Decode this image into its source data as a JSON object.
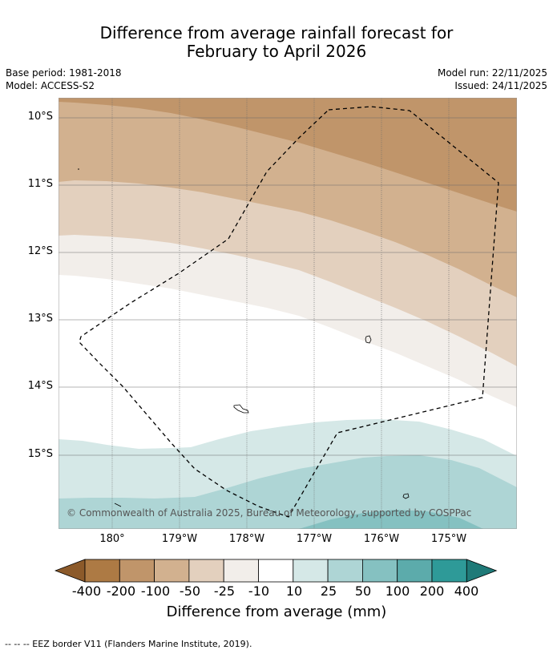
{
  "title_line1": "Difference from average rainfall forecast for",
  "title_line2": "February to April 2026",
  "base_period": "Base period: 1981-2018",
  "model": "Model: ACCESS-S2",
  "model_run": "Model run: 22/11/2025",
  "issued": "Issued: 24/11/2025",
  "latitude_labels": [
    "10°S",
    "11°S",
    "12°S",
    "13°S",
    "14°S",
    "15°S"
  ],
  "longitude_labels": [
    "180°",
    "179°W",
    "178°W",
    "177°W",
    "176°W",
    "175°W"
  ],
  "copyright": "© Commonwealth of Australia 2025, Bureau of Meteorology, supported by COSPPac",
  "colorbar": {
    "labels": [
      "-400",
      "-200",
      "-100",
      "-50",
      "-25",
      "-10",
      "10",
      "25",
      "50",
      "100",
      "200",
      "400"
    ],
    "colors": [
      "#8c5a2a",
      "#ad7a44",
      "#c0956a",
      "#d2b18f",
      "#e3d0be",
      "#f2eeea",
      "#ffffff",
      "#d5e8e7",
      "#aed5d5",
      "#85c1c1",
      "#5cabab",
      "#2e9a98",
      "#1f7a78"
    ],
    "title": "Difference from average (mm)"
  },
  "footnote": "--  --  -- EEZ border V11 (Flanders Marine Institute, 2019)."
}
